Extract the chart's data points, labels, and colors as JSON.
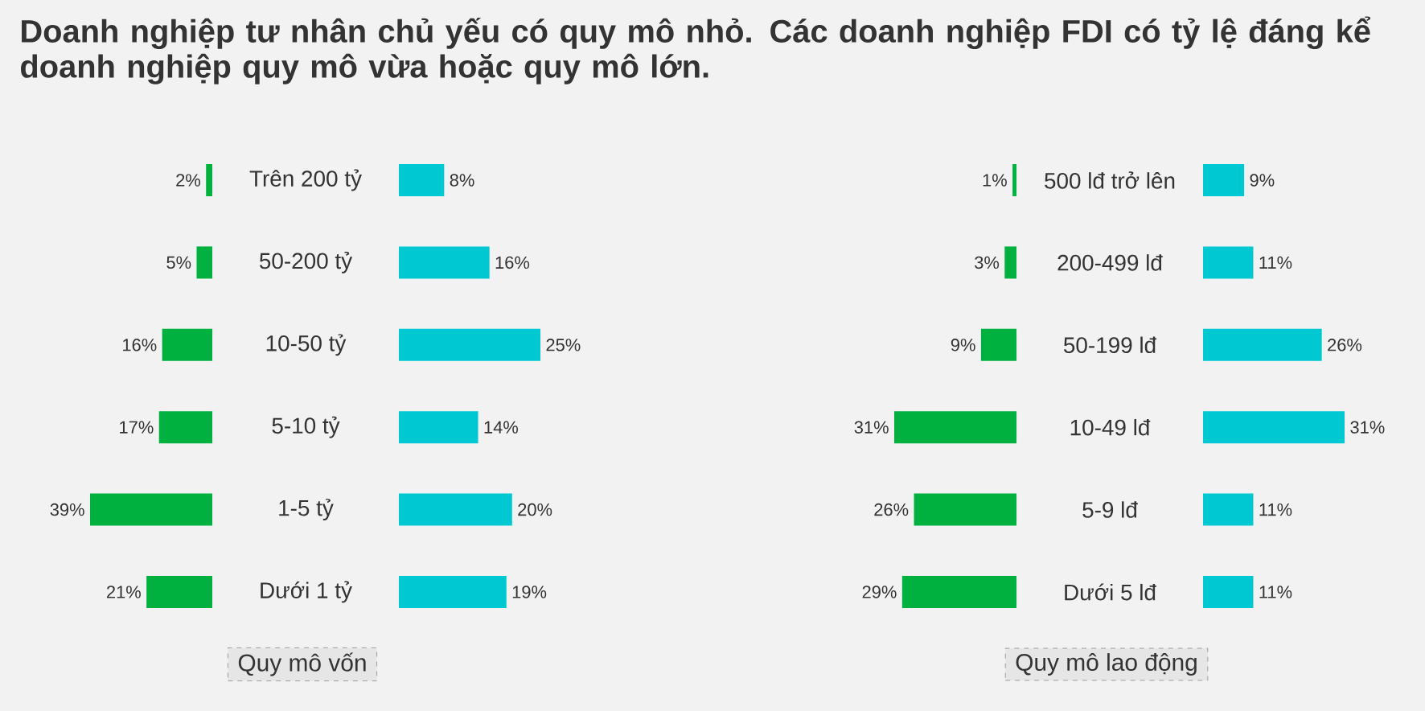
{
  "chart_data": [
    {
      "type": "bar",
      "orientation": "horizontal",
      "title": "Doanh nghiệp tư nhân chủ yếu có quy mô nhỏ. Các doanh nghiệp FDI có tỷ lệ đáng kể doanh nghiệp quy mô vừa hoặc quy mô lớn.",
      "xlabel": "Quy mô vốn",
      "categories": [
        "Trên 200 tỷ",
        "50-200 tỷ",
        "10-50 tỷ",
        "5-10 tỷ",
        "1-5 tỷ",
        "Dưới 1 tỷ"
      ],
      "series": [
        {
          "color": "#00b140",
          "values": [
            2,
            5,
            16,
            17,
            39,
            21
          ],
          "value_labels": [
            "2%",
            "5%",
            "16%",
            "17%",
            "39%",
            "21%"
          ]
        }
      ]
    },
    {
      "type": "bar",
      "orientation": "horizontal",
      "categories": [
        null,
        null,
        null,
        null,
        null,
        null
      ],
      "series": [
        {
          "color": "#00c8d2",
          "values": [
            8,
            16,
            25,
            14,
            20,
            19
          ],
          "value_labels": [
            "8%",
            "16%",
            "25%",
            "14%",
            "20%",
            "19%"
          ]
        }
      ]
    },
    {
      "type": "bar",
      "orientation": "horizontal",
      "xlabel": "Quy mô lao động",
      "categories": [
        "500 lđ trở lên",
        "200-499 lđ",
        "50-199 lđ",
        "10-49 lđ",
        "5-9 lđ",
        "Dưới 5 lđ"
      ],
      "series": [
        {
          "color": "#00b140",
          "values": [
            1,
            3,
            9,
            31,
            26,
            29
          ],
          "value_labels": [
            "1%",
            "3%",
            "9%",
            "31%",
            "26%",
            "29%"
          ]
        }
      ]
    },
    {
      "type": "bar",
      "orientation": "horizontal",
      "categories": [
        null,
        null,
        null,
        null,
        null,
        null
      ],
      "series": [
        {
          "color": "#00c8d2",
          "values": [
            9,
            11,
            26,
            31,
            11,
            11
          ],
          "value_labels": [
            "9%",
            "11%",
            "26%",
            "31%",
            "11%",
            "11%"
          ]
        }
      ]
    }
  ]
}
